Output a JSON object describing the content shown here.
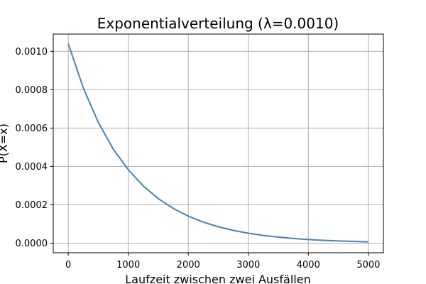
{
  "chart_data": {
    "type": "line",
    "title": "Exponentialverteilung (λ=0.0010)",
    "xlabel": "Laufzeit zwischen zwei Ausfällen",
    "ylabel": "P(X=x)",
    "xlim": [
      -250,
      5250
    ],
    "ylim": [
      -5e-05,
      0.00109
    ],
    "xticks": [
      0,
      1000,
      2000,
      3000,
      4000,
      5000
    ],
    "xtick_labels": [
      "0",
      "1000",
      "2000",
      "3000",
      "4000",
      "5000"
    ],
    "yticks": [
      0,
      0.0002,
      0.0004,
      0.0006,
      0.0008,
      0.001
    ],
    "ytick_labels": [
      "0.0000",
      "0.0002",
      "0.0004",
      "0.0006",
      "0.0008",
      "0.0010"
    ],
    "grid": true,
    "series": [
      {
        "color": "#4682b4",
        "x": [
          0,
          250,
          500,
          750,
          1000,
          1250,
          1500,
          1750,
          2000,
          2250,
          2500,
          2750,
          3000,
          3250,
          3500,
          3750,
          4000,
          4250,
          4500,
          4750,
          5000
        ],
        "y": [
          0.00104,
          0.00081,
          0.00063,
          0.00049,
          0.000383,
          0.000298,
          0.000232,
          0.000181,
          0.000141,
          0.00011,
          8.55e-05,
          6.66e-05,
          5.19e-05,
          4.04e-05,
          3.15e-05,
          2.45e-05,
          1.91e-05,
          1.49e-05,
          1.16e-05,
          9.02e-06,
          7.02e-06
        ]
      }
    ]
  }
}
